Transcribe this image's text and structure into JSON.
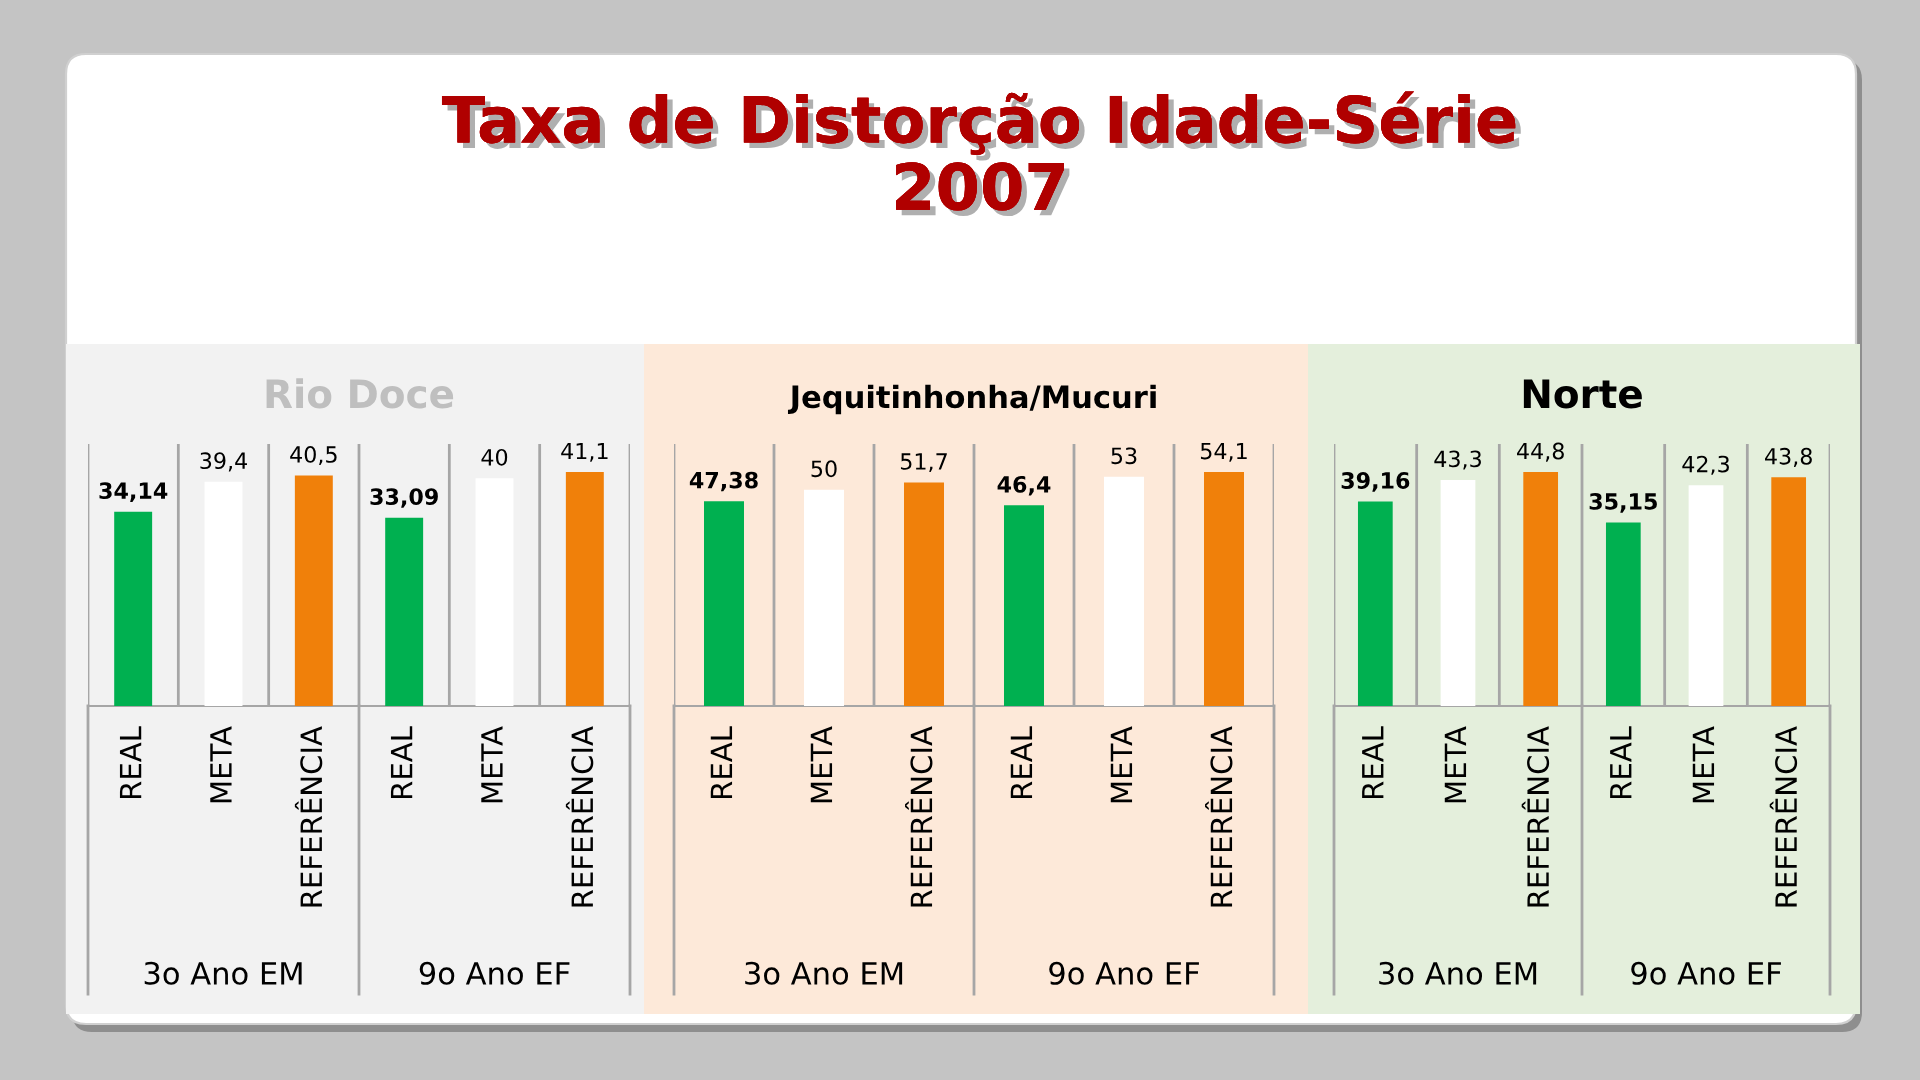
{
  "chart_data": [
    {
      "type": "other",
      "title": "Taxa de Distorção Idade-Série",
      "subtitle": "2007"
    },
    {
      "type": "bar",
      "title": "Rio Doce",
      "categories": [
        "3o Ano EM",
        "9o Ano EF"
      ],
      "series": [
        {
          "name": "REAL",
          "color": "#00b050",
          "values": [
            34.14,
            33.09
          ],
          "value_labels": [
            "34,14",
            "33,09"
          ]
        },
        {
          "name": "META",
          "color": "#ffffff",
          "values": [
            39.4,
            40
          ],
          "value_labels": [
            "39,4",
            "40"
          ]
        },
        {
          "name": "REFERÊNCIA",
          "color": "#f0800a",
          "values": [
            40.5,
            41.1
          ],
          "value_labels": [
            "40,5",
            "41,1"
          ]
        }
      ],
      "grid": "x",
      "tick_labels": "x"
    },
    {
      "type": "bar",
      "title": "Jequitinhonha/Mucuri",
      "categories": [
        "3o Ano EM",
        "9o Ano EF"
      ],
      "series": [
        {
          "name": "REAL",
          "color": "#00b050",
          "values": [
            47.38,
            46.4
          ],
          "value_labels": [
            "47,38",
            "46,4"
          ]
        },
        {
          "name": "META",
          "color": "#ffffff",
          "values": [
            50,
            53
          ],
          "value_labels": [
            "50",
            "53"
          ]
        },
        {
          "name": "REFERÊNCIA",
          "color": "#f0800a",
          "values": [
            51.7,
            54.1
          ],
          "value_labels": [
            "51,7",
            "54,1"
          ]
        }
      ],
      "grid": "x",
      "tick_labels": "x"
    },
    {
      "type": "bar",
      "title": "Norte",
      "categories": [
        "3o Ano EM",
        "9o Ano EF"
      ],
      "series": [
        {
          "name": "REAL",
          "color": "#00b050",
          "values": [
            39.16,
            35.15
          ],
          "value_labels": [
            "39,16",
            "35,15"
          ]
        },
        {
          "name": "META",
          "color": "#ffffff",
          "values": [
            43.3,
            42.3
          ],
          "value_labels": [
            "43,3",
            "42,3"
          ]
        },
        {
          "name": "REFERÊNCIA",
          "color": "#f0800a",
          "values": [
            44.8,
            43.8
          ],
          "value_labels": [
            "44,8",
            "43,8"
          ]
        }
      ],
      "grid": "x",
      "tick_labels": "x"
    }
  ]
}
